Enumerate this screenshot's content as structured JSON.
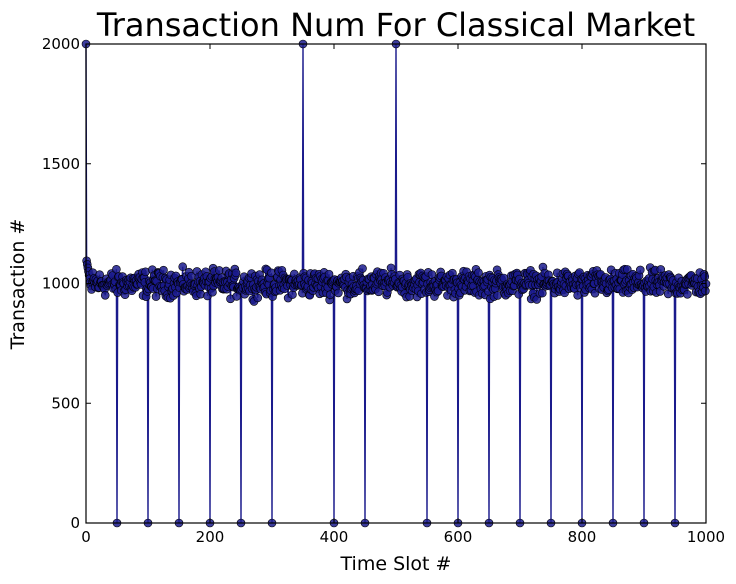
{
  "chart_data": {
    "type": "line",
    "title": "Transaction Num For Classical Market",
    "xlabel": "Time Slot #",
    "ylabel": "Transaction #",
    "xlim": [
      0,
      1000
    ],
    "ylim": [
      0,
      2000
    ],
    "x_ticks": [
      "0",
      "200",
      "400",
      "600",
      "800",
      "1000"
    ],
    "y_ticks": [
      "0",
      "500",
      "1000",
      "1500",
      "2000"
    ],
    "grid": false,
    "legend": "none",
    "series_color": "#1a1a8c",
    "marker": "circle",
    "baseline": {
      "typical_value": 1000,
      "range": [
        925,
        1070
      ],
      "start_values": [
        1110,
        1095,
        1080,
        1065,
        1050,
        1035,
        1020,
        1005,
        990,
        975
      ]
    },
    "spikes_low": [
      50,
      100,
      150,
      200,
      250,
      300,
      400,
      450,
      550,
      600,
      650,
      700,
      750,
      800,
      850,
      900,
      950
    ],
    "spikes_high": [
      0,
      350,
      500
    ],
    "low_value": 0,
    "high_value": 2000
  }
}
